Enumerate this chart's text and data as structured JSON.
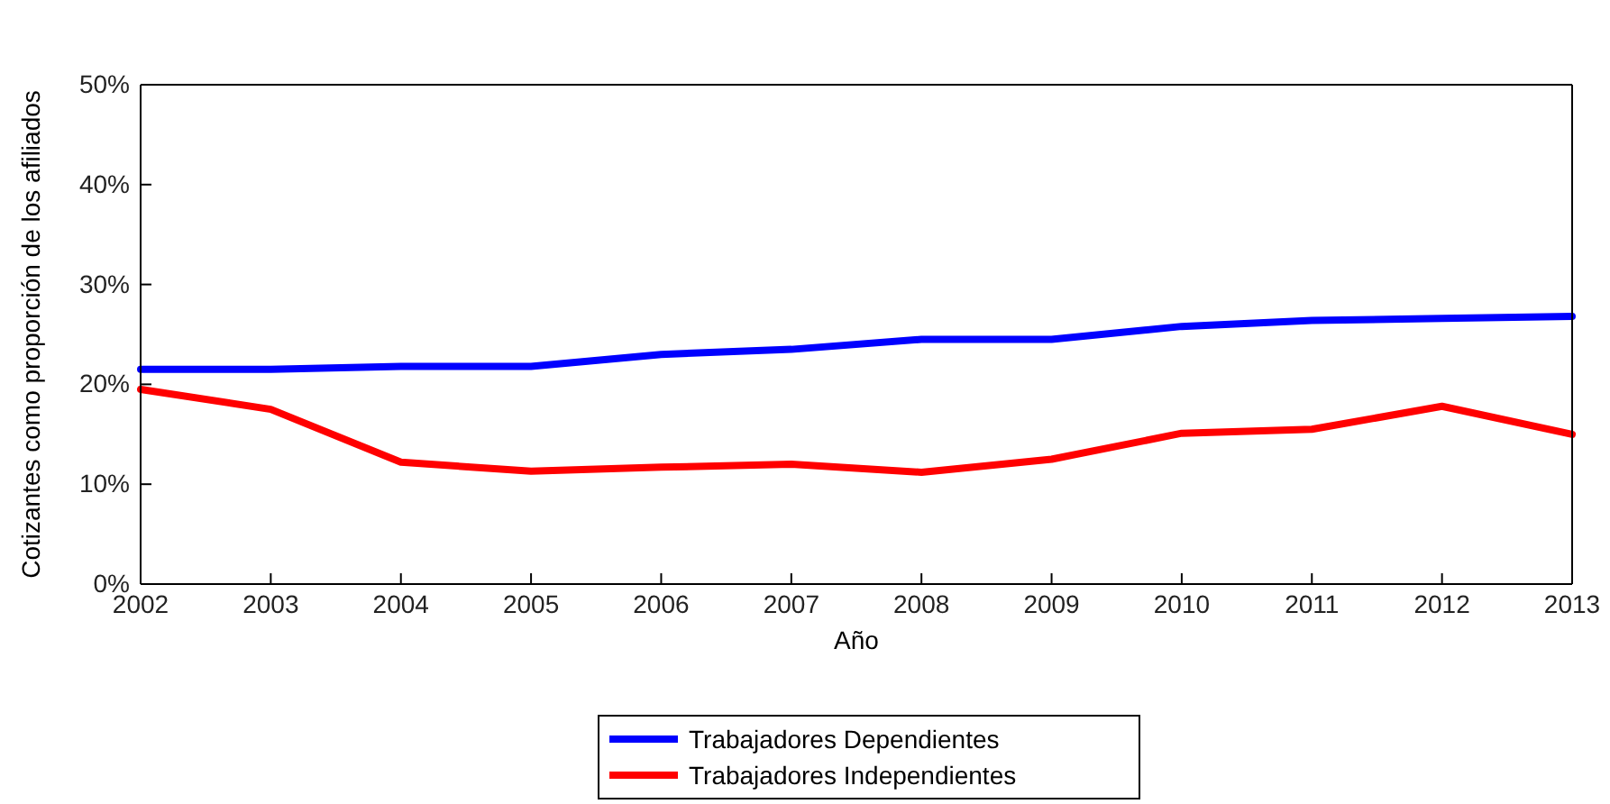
{
  "chart_data": {
    "type": "line",
    "xlabel": "Año",
    "ylabel": "Cotizantes como proporción de los afiliados",
    "x": [
      2002,
      2003,
      2004,
      2005,
      2006,
      2007,
      2008,
      2009,
      2010,
      2011,
      2012,
      2013
    ],
    "xlim": [
      2002,
      2013
    ],
    "xticks": [
      2002,
      2003,
      2004,
      2005,
      2006,
      2007,
      2008,
      2009,
      2010,
      2011,
      2012,
      2013
    ],
    "ylim": [
      0,
      0.5
    ],
    "yticks": [
      {
        "value": 0,
        "label": "0%"
      },
      {
        "value": 0.1,
        "label": "10%"
      },
      {
        "value": 0.2,
        "label": "20%"
      },
      {
        "value": 0.3,
        "label": "30%"
      },
      {
        "value": 0.4,
        "label": "40%"
      },
      {
        "value": 0.5,
        "label": "50%"
      }
    ],
    "legend": "bottom",
    "grid": false,
    "line_style": "solid",
    "marker": "none",
    "series": [
      {
        "name": "Trabajadores Dependientes",
        "color": "#0000ff",
        "values": [
          0.215,
          0.215,
          0.218,
          0.218,
          0.23,
          0.235,
          0.245,
          0.245,
          0.258,
          0.264,
          0.266,
          0.268
        ]
      },
      {
        "name": "Trabajadores Independientes",
        "color": "#ff0000",
        "values": [
          0.195,
          0.175,
          0.122,
          0.113,
          0.117,
          0.12,
          0.112,
          0.125,
          0.151,
          0.155,
          0.178,
          0.15
        ]
      }
    ]
  }
}
